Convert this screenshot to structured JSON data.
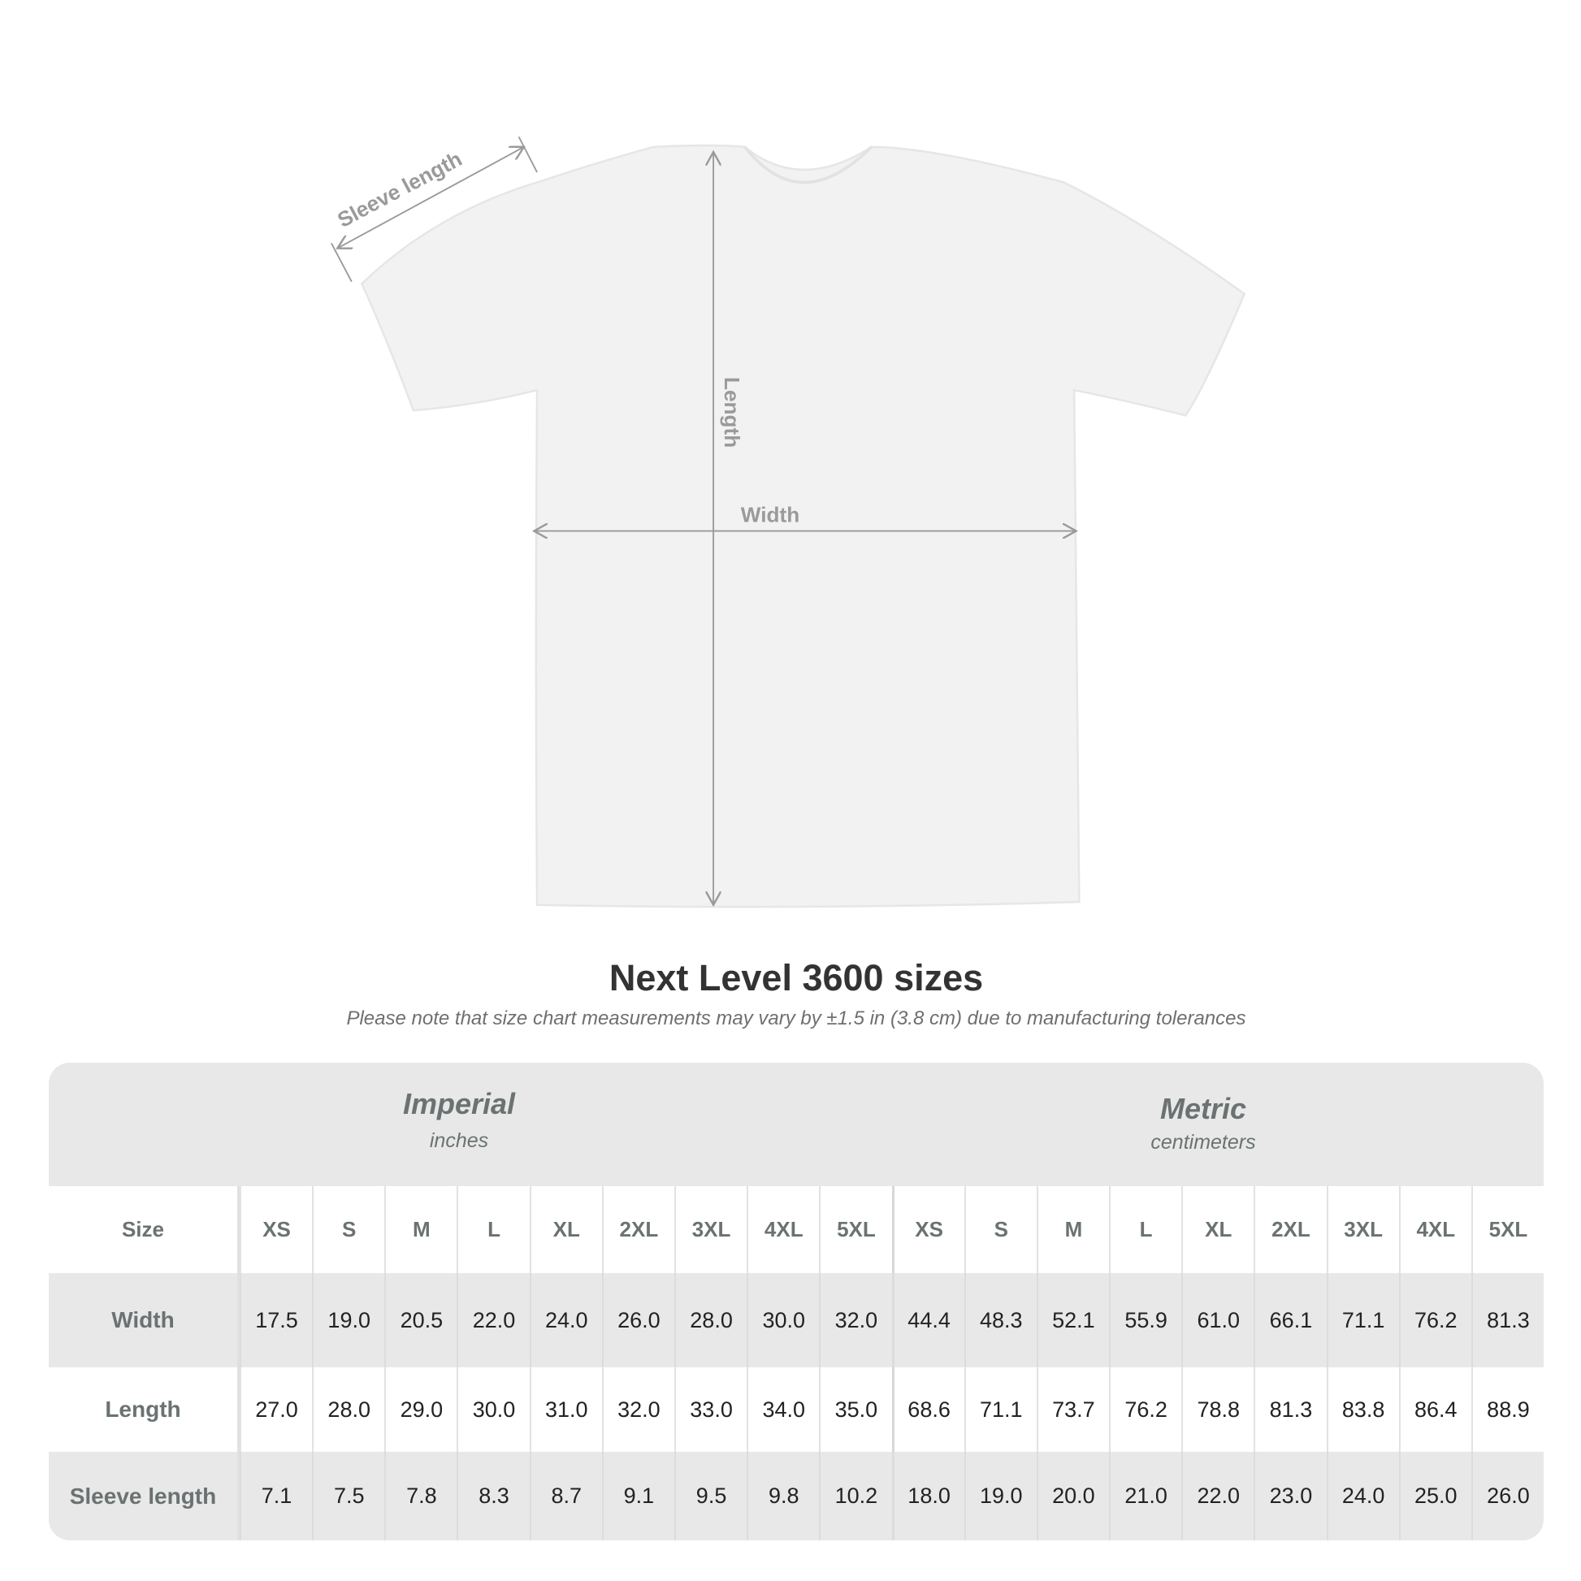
{
  "diagram": {
    "labels": {
      "sleeve": "Sleeve length",
      "length": "Length",
      "width": "Width"
    },
    "line_color": "#9a9a9a"
  },
  "title": "Next Level 3600 sizes",
  "note": "Please note that size chart measurements may vary by ±1.5 in (3.8 cm) due to manufacturing tolerances",
  "table": {
    "imperial": {
      "label": "Imperial",
      "unit": "inches"
    },
    "metric": {
      "label": "Metric",
      "unit": "centimeters"
    },
    "rows": [
      {
        "label": "Size",
        "imperial": [
          "XS",
          "S",
          "M",
          "L",
          "XL",
          "2XL",
          "3XL",
          "4XL",
          "5XL"
        ],
        "metric": [
          "XS",
          "S",
          "M",
          "L",
          "XL",
          "2XL",
          "3XL",
          "4XL",
          "5XL"
        ]
      },
      {
        "label": "Width",
        "imperial": [
          "17.5",
          "19.0",
          "20.5",
          "22.0",
          "24.0",
          "26.0",
          "28.0",
          "30.0",
          "32.0"
        ],
        "metric": [
          "44.4",
          "48.3",
          "52.1",
          "55.9",
          "61.0",
          "66.1",
          "71.1",
          "76.2",
          "81.3"
        ]
      },
      {
        "label": "Length",
        "imperial": [
          "27.0",
          "28.0",
          "29.0",
          "30.0",
          "31.0",
          "32.0",
          "33.0",
          "34.0",
          "35.0"
        ],
        "metric": [
          "68.6",
          "71.1",
          "73.7",
          "76.2",
          "78.8",
          "81.3",
          "83.8",
          "86.4",
          "88.9"
        ]
      },
      {
        "label": "Sleeve length",
        "imperial": [
          "7.1",
          "7.5",
          "7.8",
          "8.3",
          "8.7",
          "9.1",
          "9.5",
          "9.8",
          "10.2"
        ],
        "metric": [
          "18.0",
          "19.0",
          "20.0",
          "21.0",
          "22.0",
          "23.0",
          "24.0",
          "25.0",
          "26.0"
        ]
      }
    ]
  }
}
